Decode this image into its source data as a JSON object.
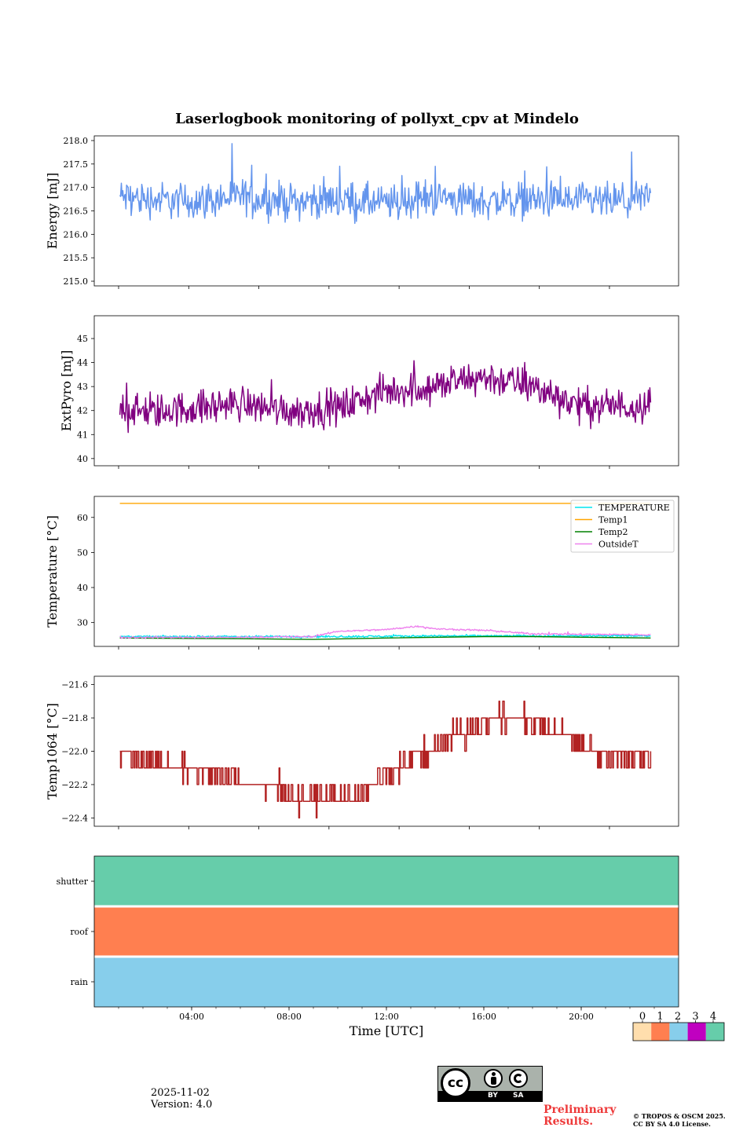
{
  "page": {
    "title": "Laserlogbook monitoring of pollyxt_cpv at Mindelo",
    "date": "2025-11-02",
    "version": "Version: 4.0",
    "preliminary": [
      "Preliminary",
      "Results."
    ],
    "copyright": [
      "© TROPOS & OSCM 2025.",
      "CC BY SA 4.0 License."
    ],
    "license_badge": {
      "cc": "cc",
      "by": "BY",
      "sa": "SA"
    }
  },
  "chart_data": [
    {
      "type": "line",
      "id": "energy",
      "ylabel": "Energy [mJ]",
      "ylim": [
        214.9,
        218.1
      ],
      "yticks": [
        215.0,
        215.5,
        216.0,
        216.5,
        217.0,
        217.5,
        218.0
      ],
      "ytick_labels": [
        "215.0",
        "215.5",
        "216.0",
        "216.5",
        "217.0",
        "217.5",
        "218.0"
      ],
      "series": [
        {
          "name": "Energy",
          "color": "#6495ed",
          "noisy": true,
          "x_hours": [
            1.05,
            2,
            4,
            6,
            8,
            10,
            12,
            14,
            16,
            18,
            20,
            22,
            22.85
          ],
          "values": [
            216.8,
            216.75,
            216.7,
            216.8,
            216.7,
            216.75,
            216.65,
            216.8,
            216.7,
            216.75,
            216.7,
            216.7,
            216.8
          ],
          "noise": 0.33
        }
      ]
    },
    {
      "type": "line",
      "id": "extpyro",
      "ylabel": "ExtPyro [mJ]",
      "ylim": [
        39.7,
        45.95
      ],
      "yticks": [
        40,
        41,
        42,
        43,
        44,
        45
      ],
      "ytick_labels": [
        "40",
        "41",
        "42",
        "43",
        "44",
        "45"
      ],
      "series": [
        {
          "name": "ExtPyro",
          "color": "#800080",
          "noisy": true,
          "x_hours": [
            1.05,
            2,
            4,
            6,
            8,
            10,
            12,
            14,
            16,
            18,
            20,
            22,
            22.85
          ],
          "values": [
            42.2,
            41.9,
            42.1,
            42.3,
            42.0,
            42.1,
            42.8,
            43.0,
            43.4,
            43.0,
            42.2,
            42.2,
            42.3
          ],
          "noise": 0.62
        }
      ]
    },
    {
      "type": "line",
      "id": "temperature",
      "ylabel": "Temperature [°C]",
      "ylim": [
        23.2,
        66.0
      ],
      "yticks": [
        30,
        40,
        50,
        60
      ],
      "ytick_labels": [
        "30",
        "40",
        "50",
        "60"
      ],
      "legend_position": "top-right",
      "series": [
        {
          "name": "TEMPERATURE",
          "color": "#00e5ee",
          "noisy": true,
          "x_hours": [
            1.05,
            6,
            10,
            14,
            18,
            22.85
          ],
          "values": [
            26.0,
            26.0,
            26.0,
            26.2,
            26.2,
            26.2
          ],
          "noise": 0.25
        },
        {
          "name": "Temp1",
          "color": "#ffa500",
          "noisy": false,
          "x_hours": [
            1.05,
            22.85
          ],
          "values": [
            64.0,
            64.0
          ],
          "noise": 0
        },
        {
          "name": "Temp2",
          "color": "#008000",
          "noisy": false,
          "x_hours": [
            1.05,
            6,
            9,
            12,
            16,
            18,
            22.85
          ],
          "values": [
            25.6,
            25.4,
            25.2,
            25.6,
            26.0,
            26.0,
            25.6
          ],
          "noise": 0
        },
        {
          "name": "OutsideT",
          "color": "#ee82ee",
          "noisy": true,
          "x_hours": [
            1.05,
            6,
            9,
            10,
            12,
            13.3,
            14,
            16,
            18,
            22.85
          ],
          "values": [
            25.8,
            25.8,
            26.0,
            27.5,
            28.0,
            29.0,
            28.2,
            27.8,
            26.8,
            26.5
          ],
          "noise": 0.2
        }
      ]
    },
    {
      "type": "line",
      "id": "temp1064",
      "ylabel": "Temp1064 [°C]",
      "ylim": [
        -22.45,
        -21.55
      ],
      "yticks": [
        -22.4,
        -22.2,
        -22.0,
        -21.8,
        -21.6
      ],
      "ytick_labels": [
        "−22.4",
        "−22.2",
        "−22.0",
        "−21.8",
        "−21.6"
      ],
      "series": [
        {
          "name": "Temp1064",
          "color": "#b22222",
          "noisy": true,
          "step": 0.1,
          "x_hours": [
            1.05,
            3,
            5,
            7,
            9,
            11,
            13,
            15,
            17,
            19,
            21,
            22.85
          ],
          "values": [
            -22.0,
            -22.08,
            -22.15,
            -22.22,
            -22.28,
            -22.25,
            -22.05,
            -21.9,
            -21.78,
            -21.88,
            -22.02,
            -22.05
          ],
          "noise": 0.06
        }
      ]
    },
    {
      "type": "heatmap",
      "id": "flags",
      "rows": [
        "shutter",
        "roof",
        "rain"
      ],
      "row_values": [
        4,
        1,
        2
      ],
      "xlabel": "Time [UTC]",
      "xticks_hours": [
        4,
        8,
        12,
        16,
        20
      ],
      "xtick_labels": [
        "04:00",
        "08:00",
        "12:00",
        "16:00",
        "20:00"
      ],
      "colorbar": {
        "labels": [
          "0",
          "1",
          "2",
          "3",
          "4"
        ],
        "colors": [
          "#ffdead",
          "#ff7f50",
          "#87ceeb",
          "#c000c0",
          "#66cdaa"
        ]
      }
    }
  ]
}
